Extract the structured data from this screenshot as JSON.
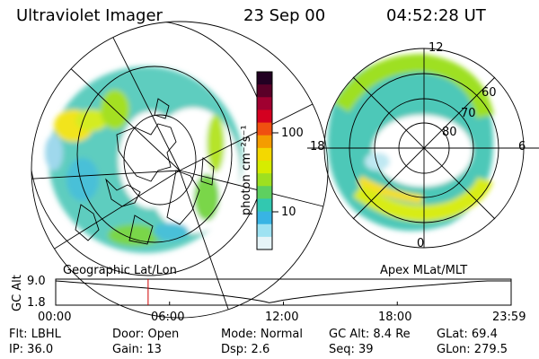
{
  "header": {
    "instrument": "Ultraviolet Imager",
    "date": "23 Sep 00",
    "time": "04:52:28 UT"
  },
  "colorbar": {
    "unit_label": "photon cm⁻²s⁻¹",
    "ticks": [
      "100",
      "10"
    ],
    "colors": [
      "#220022",
      "#5a0028",
      "#a00030",
      "#d40020",
      "#f05010",
      "#f49c00",
      "#f4d800",
      "#d6ec00",
      "#9ee020",
      "#5ed060",
      "#32c8b0",
      "#38b4e4",
      "#9ee2f2",
      "#e6f4f8"
    ]
  },
  "left_panel": {
    "projection": "Geographic Lat/Lon"
  },
  "right_panel": {
    "projection": "Apex MLat/MLT",
    "mlt_labels": [
      "12",
      "6",
      "0",
      "18"
    ],
    "mlat_labels": [
      "60",
      "70",
      "80"
    ]
  },
  "altitude_plot": {
    "ylabel": "GC Alt",
    "y_max": "9.0",
    "y_min": "1.8",
    "x_ticks": [
      "00:00",
      "06:00",
      "12:00",
      "18:00",
      "23:59"
    ],
    "marker_color": "#d00000",
    "marker_time_hours": 4.87
  },
  "info": {
    "flt": "Flt: LBHL",
    "door": "Door: Open",
    "mode": "Mode: Normal",
    "gc_alt": "GC Alt: 8.4 Re",
    "glat": "GLat:  69.4",
    "ip": "IP: 36.0",
    "gain": "Gain: 13",
    "dsp": "Dsp:    2.6",
    "seq": "Seq: 39",
    "glon": "GLon: 279.5"
  }
}
